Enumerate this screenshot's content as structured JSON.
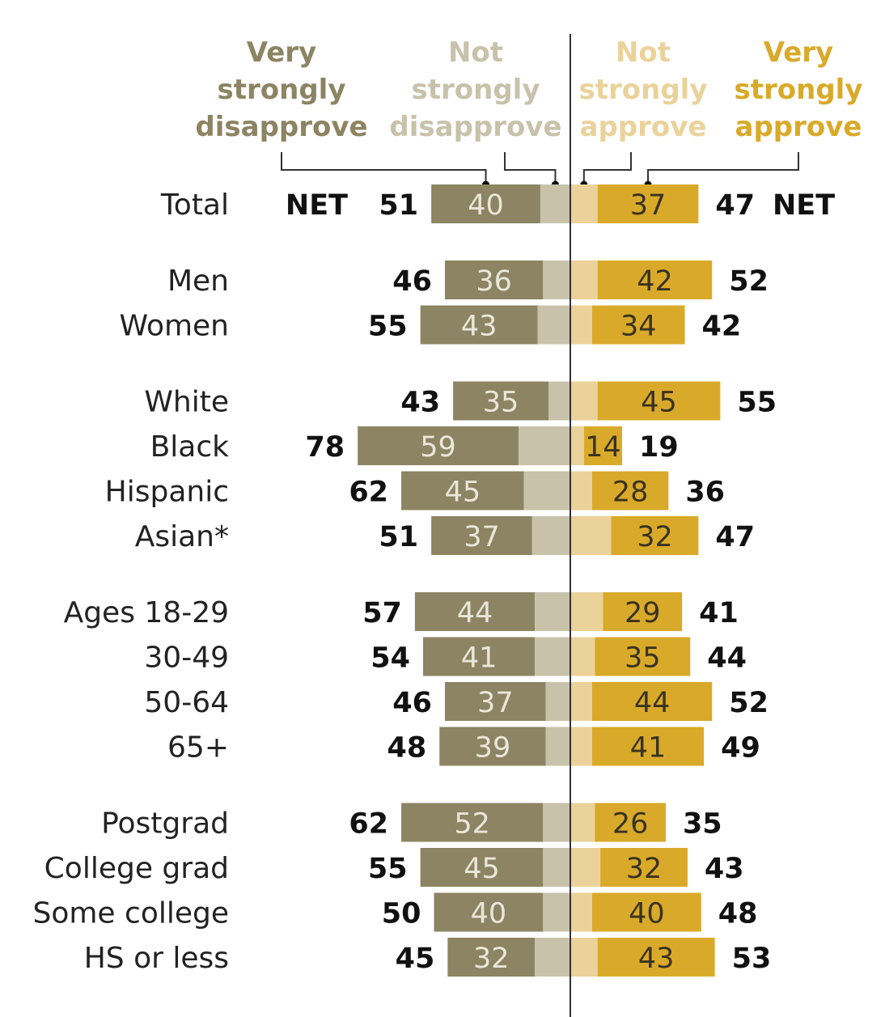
{
  "chart_data": {
    "type": "bar",
    "legend": [
      {
        "name": "Very strongly disapprove",
        "lines": [
          "Very",
          "strongly",
          "disapprove"
        ],
        "color": "#8c8462"
      },
      {
        "name": "Not strongly disapprove",
        "lines": [
          "Not",
          "strongly",
          "disapprove"
        ],
        "color": "#c8c2ab"
      },
      {
        "name": "Not strongly approve",
        "lines": [
          "Not",
          "strongly",
          "approve"
        ],
        "color": "#ead29a"
      },
      {
        "name": "Very strongly approve",
        "lines": [
          "Very",
          "strongly",
          "approve"
        ],
        "color": "#d9aa2a"
      }
    ],
    "net_label": "NET",
    "categories": [
      "Total",
      "Men",
      "Women",
      "White",
      "Black",
      "Hispanic",
      "Asian*",
      "Ages 18-29",
      "30-49",
      "50-64",
      "65+",
      "Postgrad",
      "College grad",
      "Some college",
      "HS or less"
    ],
    "groups": [
      [
        0
      ],
      [
        1,
        2
      ],
      [
        3,
        4,
        5,
        6
      ],
      [
        7,
        8,
        9,
        10
      ],
      [
        11,
        12,
        13,
        14
      ]
    ],
    "series": [
      {
        "name": "Very strongly disapprove",
        "values": [
          40,
          36,
          43,
          35,
          59,
          45,
          37,
          44,
          41,
          37,
          39,
          52,
          45,
          40,
          32
        ]
      },
      {
        "name": "Not strongly disapprove",
        "values": [
          11,
          10,
          12,
          8,
          19,
          17,
          14,
          13,
          13,
          9,
          9,
          10,
          10,
          10,
          13
        ]
      },
      {
        "name": "Not strongly approve",
        "values": [
          10,
          10,
          8,
          10,
          5,
          8,
          15,
          12,
          9,
          8,
          8,
          9,
          11,
          8,
          10
        ]
      },
      {
        "name": "Very strongly approve",
        "values": [
          37,
          42,
          34,
          45,
          14,
          28,
          32,
          29,
          35,
          44,
          41,
          26,
          32,
          40,
          43
        ]
      }
    ],
    "net_disapprove": [
      51,
      46,
      55,
      43,
      78,
      62,
      51,
      57,
      54,
      46,
      48,
      62,
      55,
      50,
      45
    ],
    "net_approve": [
      47,
      52,
      42,
      55,
      19,
      36,
      47,
      41,
      44,
      52,
      49,
      35,
      43,
      48,
      53
    ]
  }
}
